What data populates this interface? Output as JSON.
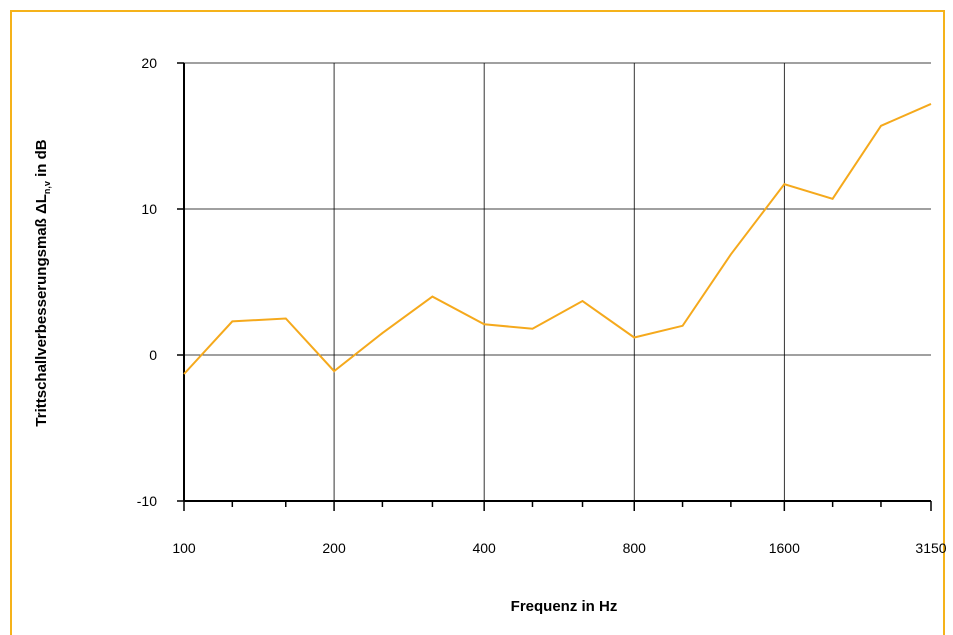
{
  "chart_data": {
    "type": "line",
    "xlabel": "Frequenz in Hz",
    "ylabel_parts": {
      "prefix": "Trittschallverbesserungsmaß ΔL",
      "subscript": "n,v",
      "suffix": " in dB"
    },
    "ylim": [
      -10,
      20
    ],
    "y_ticks": [
      "20",
      "10",
      "0",
      "-10"
    ],
    "x_tick_labels": [
      "100",
      "200",
      "400",
      "800",
      "1600",
      "3150"
    ],
    "grid": true,
    "line_color": "#f5a91c",
    "frame_color": "#f5b21a",
    "series": [
      {
        "x": [
          100,
          125,
          160,
          200,
          250,
          315,
          400,
          500,
          630,
          800,
          1000,
          1250,
          1600,
          2000,
          2500,
          3150
        ],
        "values": [
          -1.3,
          2.3,
          2.5,
          -1.1,
          1.5,
          4.0,
          2.1,
          1.8,
          3.7,
          1.2,
          2.0,
          6.9,
          11.7,
          10.7,
          15.7,
          17.2
        ]
      }
    ]
  }
}
